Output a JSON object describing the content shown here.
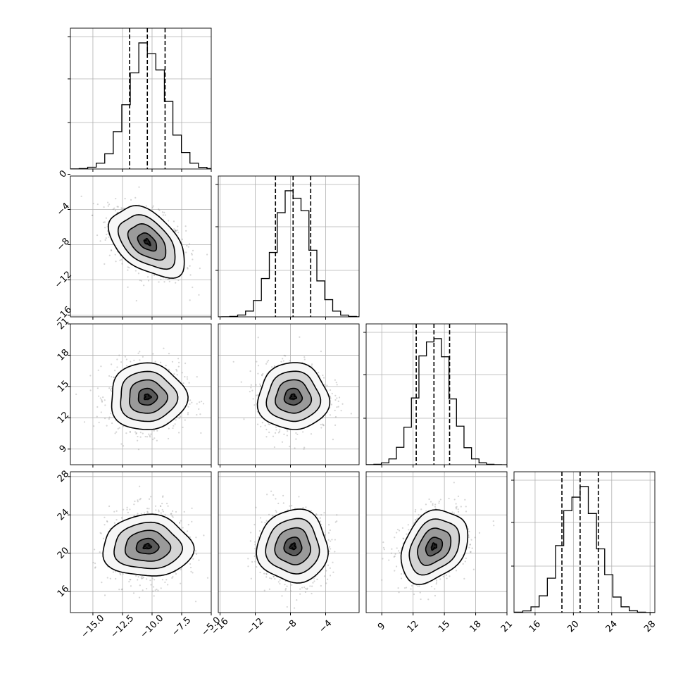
{
  "chart_data": {
    "type": "corner",
    "params": [
      {
        "range": [
          -16.9,
          -5.0
        ],
        "ticks": [
          -15.0,
          -12.5,
          -10.0,
          -7.5,
          -5.0
        ],
        "tick_labels": [
          "−15.0",
          "−12.5",
          "−10.0",
          "−7.5",
          "−5.0"
        ],
        "mean": -10.4,
        "sigma": 1.6,
        "quantiles": [
          -11.9,
          -10.4,
          -8.9
        ]
      },
      {
        "range": [
          -16.2,
          -0.2
        ],
        "ticks": [
          -16,
          -12,
          -8,
          -4,
          0
        ],
        "tick_labels": [
          "−16",
          "−12",
          "−8",
          "−4",
          "0"
        ],
        "mean": -7.7,
        "sigma": 2.0,
        "quantiles": [
          -9.7,
          -7.7,
          -5.7
        ]
      },
      {
        "range": [
          7.5,
          21.0
        ],
        "ticks": [
          9,
          12,
          15,
          18,
          21
        ],
        "tick_labels": [
          "9",
          "12",
          "15",
          "18",
          "21"
        ],
        "mean": 14.0,
        "sigma": 1.6,
        "quantiles": [
          12.3,
          14.0,
          15.5
        ]
      },
      {
        "range": [
          13.8,
          28.5
        ],
        "ticks": [
          16,
          20,
          24,
          28
        ],
        "tick_labels": [
          "16",
          "20",
          "24",
          "28"
        ],
        "mean": 20.7,
        "sigma": 1.9,
        "quantiles": [
          18.8,
          20.7,
          22.6
        ]
      }
    ],
    "correlations": [
      [
        1.0,
        -0.45,
        0.0,
        0.0
      ],
      [
        -0.45,
        1.0,
        0.0,
        0.0
      ],
      [
        0.0,
        0.0,
        1.0,
        0.3
      ],
      [
        0.0,
        0.0,
        0.3,
        1.0
      ]
    ],
    "hist_bins": 20,
    "contour_levels_sigma": [
      0.5,
      1.0,
      1.5,
      2.0
    ],
    "grid": true,
    "quantile_line_style": "dashed"
  }
}
